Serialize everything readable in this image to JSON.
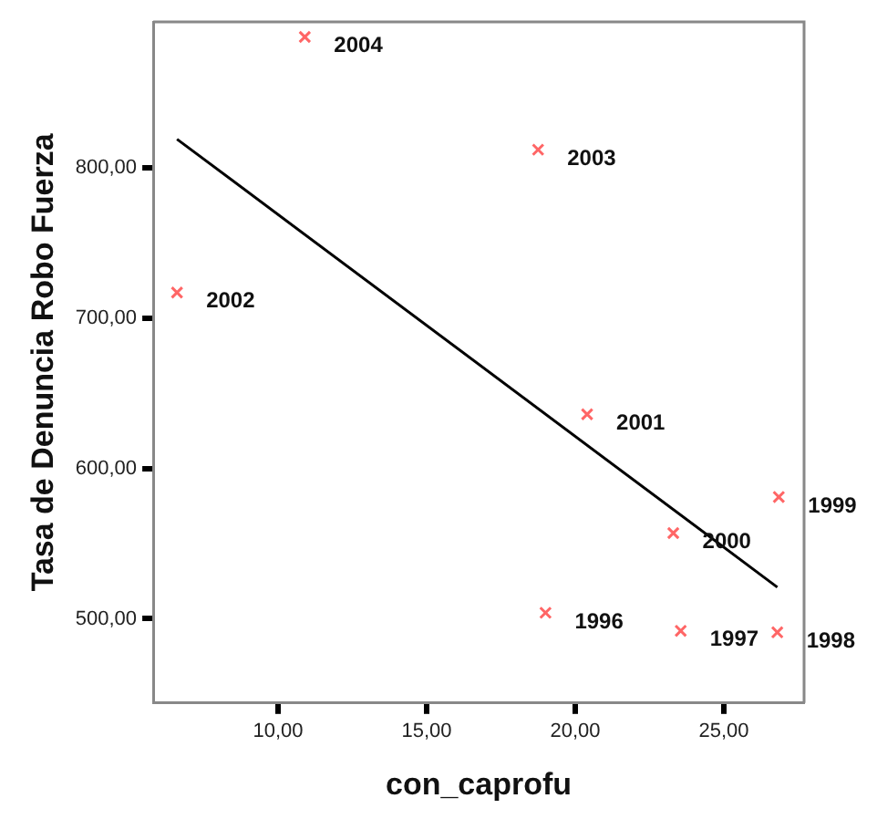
{
  "chart_data": {
    "type": "scatter",
    "xlabel": "con_caprofu",
    "ylabel": "Tasa de Denuncia Robo Fuerza",
    "xlim": [
      5.8,
      27.7
    ],
    "ylim": [
      444,
      897
    ],
    "xticks": [
      {
        "value": 10,
        "label": "10,00"
      },
      {
        "value": 15,
        "label": "15,00"
      },
      {
        "value": 20,
        "label": "20,00"
      },
      {
        "value": 25,
        "label": "25,00"
      }
    ],
    "yticks": [
      {
        "value": 500,
        "label": "500,00"
      },
      {
        "value": 600,
        "label": "600,00"
      },
      {
        "value": 700,
        "label": "700,00"
      },
      {
        "value": 800,
        "label": "800,00"
      }
    ],
    "series": [
      {
        "color": "#ff6666",
        "marker": "cross",
        "x": [
          10.9,
          18.75,
          6.6,
          20.4,
          23.3,
          26.85,
          19.0,
          23.55,
          26.8
        ],
        "values": [
          887,
          812,
          717,
          636,
          557,
          581,
          504,
          492,
          491
        ]
      },
      {
        "type": "line",
        "color": "#000000",
        "x": [
          6.6,
          26.8
        ],
        "values": [
          819,
          521
        ]
      }
    ],
    "annotations": [
      {
        "text": "2004",
        "x": 10.9,
        "y": 887
      },
      {
        "text": "2003",
        "x": 18.75,
        "y": 812
      },
      {
        "text": "2002",
        "x": 6.6,
        "y": 717
      },
      {
        "text": "2001",
        "x": 20.4,
        "y": 636
      },
      {
        "text": "2000",
        "x": 23.3,
        "y": 557
      },
      {
        "text": "1999",
        "x": 26.85,
        "y": 581
      },
      {
        "text": "1996",
        "x": 19.0,
        "y": 504
      },
      {
        "text": "1997",
        "x": 23.55,
        "y": 492
      },
      {
        "text": "1998",
        "x": 26.8,
        "y": 491
      }
    ]
  }
}
